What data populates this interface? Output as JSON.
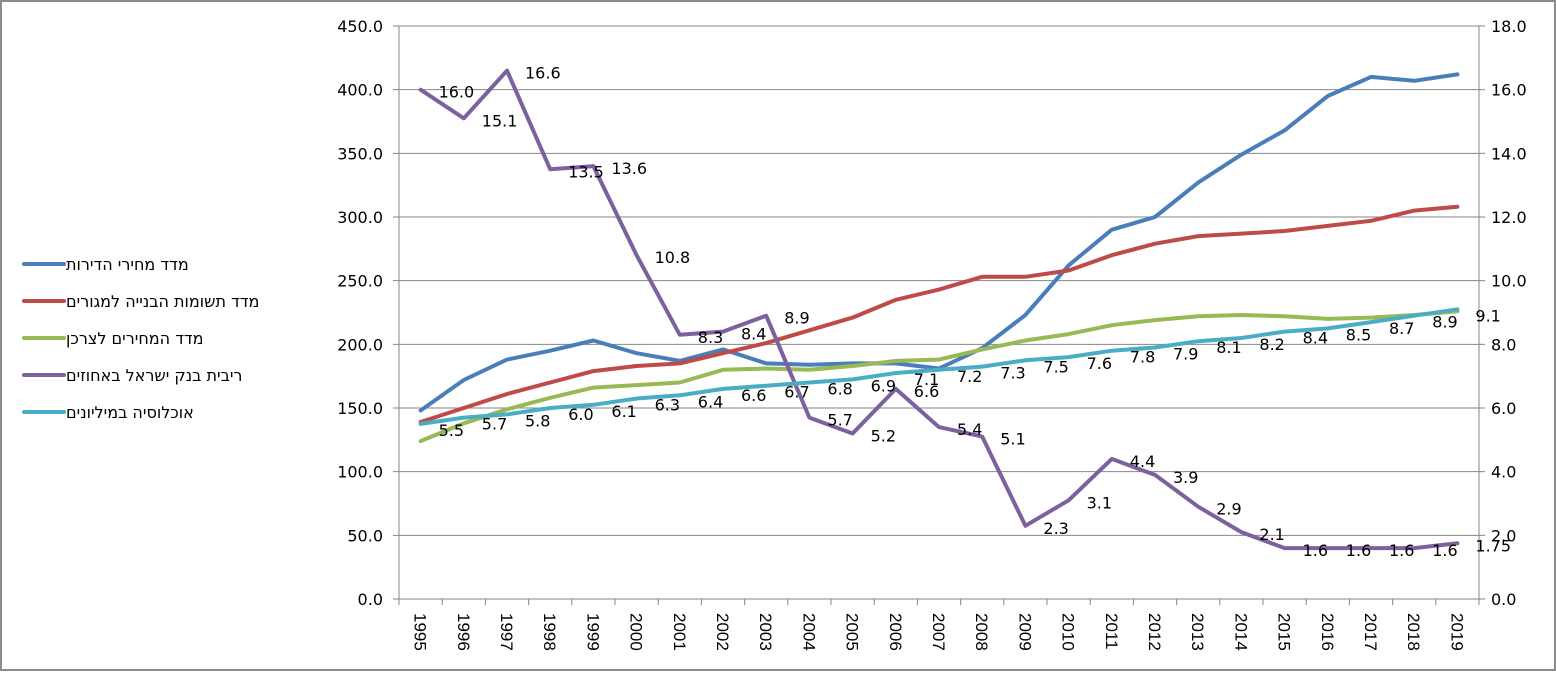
{
  "chart_data": {
    "type": "line",
    "title": "",
    "xlabel": "",
    "ylabel": "",
    "y2label": "",
    "categories": [
      "1995",
      "1996",
      "1997",
      "1998",
      "1999",
      "2000",
      "2001",
      "2002",
      "2003",
      "2004",
      "2005",
      "2006",
      "2007",
      "2008",
      "2009",
      "2010",
      "2011",
      "2012",
      "2013",
      "2014",
      "2015",
      "2016",
      "2017",
      "2018",
      "2019"
    ],
    "ylim": [
      0,
      450
    ],
    "y_ticks": [
      "0.0",
      "50.0",
      "100.0",
      "150.0",
      "200.0",
      "250.0",
      "300.0",
      "350.0",
      "400.0",
      "450.0"
    ],
    "y2lim": [
      0,
      18
    ],
    "y2_ticks": [
      "0.0",
      "2.0",
      "4.0",
      "6.0",
      "8.0",
      "10.0",
      "12.0",
      "14.0",
      "16.0",
      "18.0"
    ],
    "grid": true,
    "legend_position": "left",
    "series": [
      {
        "name": "מדד מחירי הדירות",
        "color": "#4a7ebb",
        "axis": "left",
        "values": [
          148,
          172,
          188,
          195,
          203,
          193,
          187,
          196,
          185,
          184,
          185,
          185,
          181,
          197,
          223,
          262,
          290,
          300,
          327,
          349,
          368,
          395,
          410,
          407,
          412
        ],
        "labels": null
      },
      {
        "name": "מדד תשומות הבנייה למגורים",
        "color": "#be4b48",
        "axis": "left",
        "values": [
          139,
          150,
          161,
          170,
          179,
          183,
          185,
          193,
          201,
          211,
          221,
          235,
          243,
          253,
          253,
          258,
          270,
          279,
          285,
          287,
          289,
          293,
          297,
          305,
          308
        ],
        "labels": null
      },
      {
        "name": "מדד המחירים לצרכן",
        "color": "#98b954",
        "axis": "left",
        "values": [
          124,
          138,
          149,
          158,
          166,
          168,
          170,
          180,
          181,
          180,
          183,
          187,
          188,
          196,
          203,
          208,
          215,
          219,
          222,
          223,
          222,
          220,
          221,
          223,
          226
        ],
        "labels": null
      },
      {
        "name": "ריבית בנק ישראל באחוזים",
        "color": "#7d60a0",
        "axis": "right",
        "values": [
          16.0,
          15.1,
          16.6,
          13.5,
          13.6,
          10.8,
          8.3,
          8.4,
          8.9,
          5.7,
          5.2,
          6.6,
          5.4,
          5.1,
          2.3,
          3.1,
          4.4,
          3.9,
          2.9,
          2.1,
          1.6,
          1.6,
          1.6,
          1.6,
          1.75
        ],
        "labels": [
          "16.0",
          "15.1",
          "16.6",
          "13.5",
          "13.6",
          "10.8",
          "8.3",
          "8.4",
          "8.9",
          "5.7",
          "5.2",
          "6.6",
          "5.4",
          "5.1",
          "2.3",
          "3.1",
          "4.4",
          "3.9",
          "2.9",
          "2.1",
          "1.6",
          "1.6",
          "1.6",
          "1.6",
          "1.75"
        ]
      },
      {
        "name": "אוכלוסיה במיליונים",
        "color": "#4bacc6",
        "axis": "right",
        "values": [
          5.5,
          5.7,
          5.8,
          6.0,
          6.1,
          6.3,
          6.4,
          6.6,
          6.7,
          6.8,
          6.9,
          7.1,
          7.2,
          7.3,
          7.5,
          7.6,
          7.8,
          7.9,
          8.1,
          8.2,
          8.4,
          8.5,
          8.7,
          8.9,
          9.1
        ],
        "labels": [
          "5.5",
          "5.7",
          "5.8",
          "6.0",
          "6.1",
          "6.3",
          "6.4",
          "6.6",
          "6.7",
          "6.8",
          "6.9",
          "7.1",
          "7.2",
          "7.3",
          "7.5",
          "7.6",
          "7.8",
          "7.9",
          "8.1",
          "8.2",
          "8.4",
          "8.5",
          "8.7",
          "8.9",
          "9.1"
        ]
      }
    ]
  }
}
